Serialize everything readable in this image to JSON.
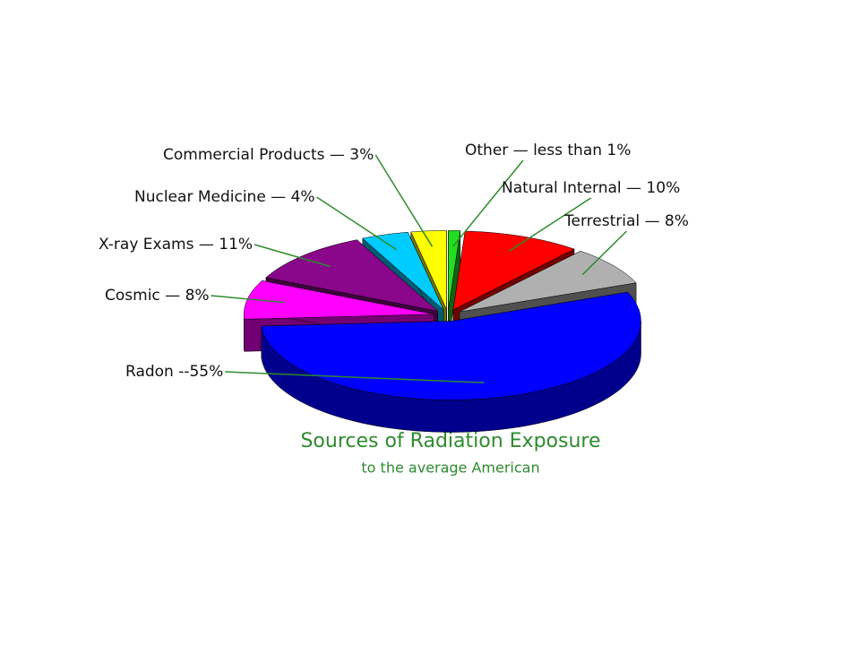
{
  "chart_data": {
    "type": "pie",
    "title": "Sources of Radiation Exposure",
    "subtitle": "to the average American",
    "values": [
      1,
      10,
      8,
      55,
      8,
      11,
      4,
      3
    ],
    "value_labels": [
      "Other — less than 1%",
      "Natural Internal — 10%",
      "Terrestrial — 8%",
      "Radon --55%",
      "Cosmic — 8%",
      "X-ray Exams — 11%",
      "Nuclear Medicine — 4%",
      "Commercial Products — 3%"
    ],
    "colors": [
      "#22dd22",
      "#ff0000",
      "#b0b0b0",
      "#0000ff",
      "#ff00ff",
      "#8a068a",
      "#00ccff",
      "#ffff00"
    ]
  }
}
